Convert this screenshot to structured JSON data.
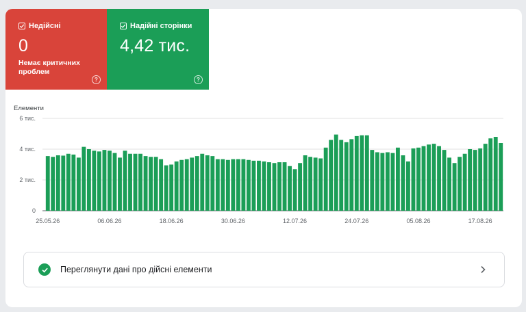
{
  "tiles": {
    "invalid": {
      "label": "Недійсні",
      "value": "0",
      "subtitle": "Немає критичних проблем",
      "color": "#d9443a",
      "checked": true,
      "icon": "help-icon"
    },
    "valid": {
      "label": "Надійні сторінки",
      "value": "4,42 тис.",
      "color": "#1b9e57",
      "checked": true,
      "icon": "help-icon"
    }
  },
  "chart_label": "Елементи",
  "chart_data": {
    "type": "bar",
    "color": "#1b9e57",
    "ylim": [
      0,
      6000
    ],
    "y_ticks": [
      {
        "value": 0,
        "label": "0"
      },
      {
        "value": 2000,
        "label": "2 тис."
      },
      {
        "value": 4000,
        "label": "4 тис."
      },
      {
        "value": 6000,
        "label": "6 тис."
      }
    ],
    "x_tick_labels": [
      {
        "index": 0,
        "label": "25.05.26"
      },
      {
        "index": 12,
        "label": "06.06.26"
      },
      {
        "index": 24,
        "label": "18.06.26"
      },
      {
        "index": 36,
        "label": "30.06.26"
      },
      {
        "index": 48,
        "label": "12.07.26"
      },
      {
        "index": 60,
        "label": "24.07.26"
      },
      {
        "index": 72,
        "label": "05.08.26"
      },
      {
        "index": 84,
        "label": "17.08.26"
      }
    ],
    "values": [
      3550,
      3500,
      3600,
      3580,
      3700,
      3650,
      3450,
      4150,
      4000,
      3900,
      3850,
      3950,
      3900,
      3750,
      3450,
      3900,
      3700,
      3700,
      3700,
      3550,
      3500,
      3500,
      3350,
      2950,
      3000,
      3200,
      3300,
      3350,
      3450,
      3550,
      3700,
      3600,
      3550,
      3350,
      3350,
      3300,
      3350,
      3350,
      3350,
      3300,
      3250,
      3250,
      3200,
      3150,
      3100,
      3150,
      3150,
      2900,
      2700,
      3100,
      3600,
      3500,
      3450,
      3400,
      4100,
      4600,
      4950,
      4600,
      4450,
      4650,
      4850,
      4900,
      4900,
      3950,
      3800,
      3750,
      3800,
      3750,
      4100,
      3600,
      3200,
      4050,
      4100,
      4200,
      4300,
      4350,
      4200,
      3950,
      3450,
      3100,
      3500,
      3700,
      4000,
      3950,
      4050,
      4350,
      4700,
      4800,
      4400
    ]
  },
  "details": {
    "label": "Переглянути дані про дійсні елементи",
    "icon": "check-circle-icon",
    "chevron": "chevron-right-icon"
  }
}
